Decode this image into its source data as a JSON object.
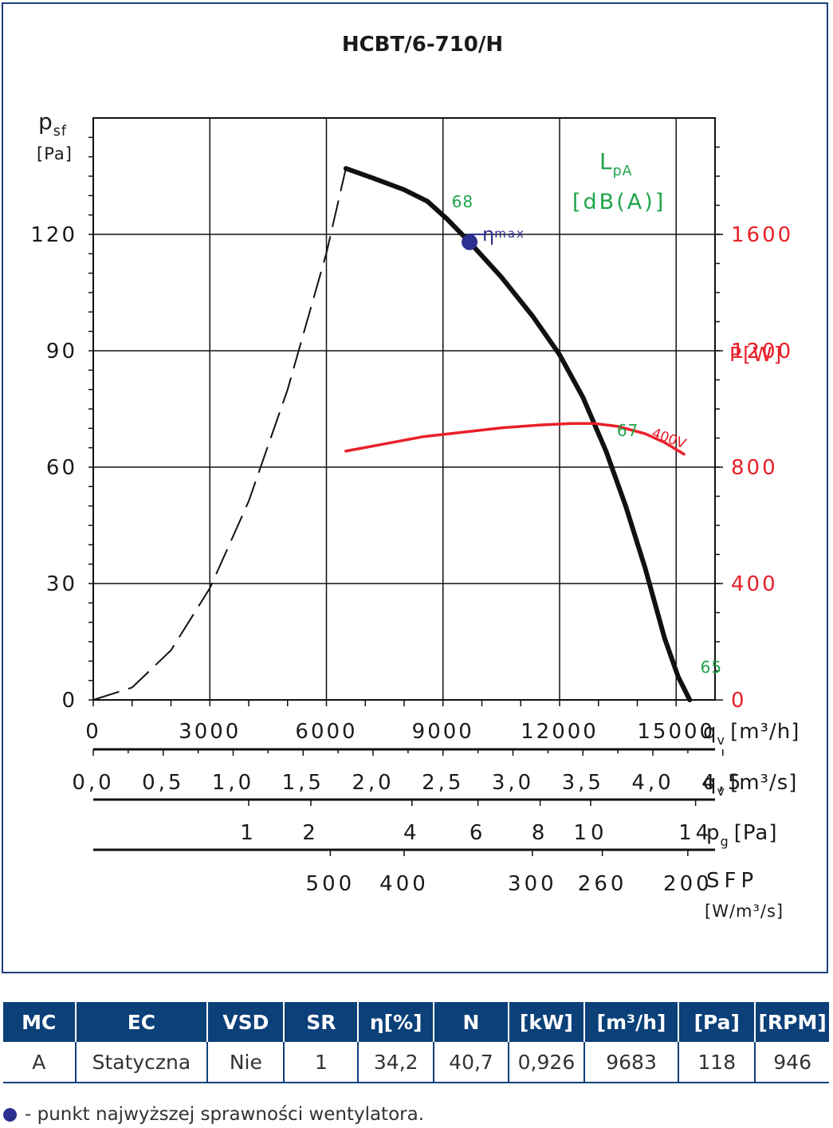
{
  "chart_data": {
    "type": "line",
    "title": "HCBT/6-710/H",
    "y_left": {
      "label_main": "p",
      "label_sub": "sf",
      "unit": "[Pa]",
      "range": [
        0,
        150
      ],
      "ticks": [
        "0",
        "30",
        "60",
        "90",
        "120"
      ]
    },
    "y_right": {
      "label": "P[W]",
      "range": [
        0,
        2000
      ],
      "ticks": [
        "0",
        "400",
        "800",
        "1200",
        "1600"
      ]
    },
    "x_axis": {
      "range": [
        0,
        16000
      ],
      "ticks": [
        "0",
        "3000",
        "6000",
        "9000",
        "12000",
        "15000"
      ],
      "label": "q",
      "label_sub": "v",
      "unit": "[m³/h]"
    },
    "x_axis_m3s": {
      "ticks": [
        "0,0",
        "0,5",
        "1,0",
        "1,5",
        "2,0",
        "2,5",
        "3,0",
        "3,5",
        "4,0",
        "4,5"
      ],
      "label": "q",
      "label_sub": "v",
      "unit": "[m³/s]"
    },
    "pg_axis": {
      "ticks": [
        "1",
        "2",
        "4",
        "6",
        "8",
        "10",
        "14"
      ],
      "positions_m3h": [
        4000,
        5600,
        8200,
        9900,
        11500,
        12800,
        15500
      ],
      "label": "p",
      "label_sub": "g",
      "unit": "[Pa]"
    },
    "sfp_axis": {
      "ticks": [
        "500",
        "400",
        "300",
        "260",
        "200"
      ],
      "positions_m3h": [
        6100,
        8000,
        11300,
        13100,
        15300
      ],
      "label": "SFP",
      "unit": "[W/m³/s]"
    },
    "lpa": {
      "label_main": "L",
      "label_sub": "pA",
      "unit": "[dB(A)]",
      "values": [
        "68",
        "67",
        "65"
      ]
    },
    "series": [
      {
        "role": "pressure",
        "color": "#111111",
        "x": [
          6500,
          7200,
          8000,
          8600,
          9100,
          9683,
          10500,
          11300,
          12000,
          12600,
          13200,
          13700,
          14200,
          14700,
          15050,
          15350
        ],
        "y": [
          137,
          134.5,
          131.5,
          128.5,
          124,
          118,
          109,
          99,
          89,
          78,
          64,
          50,
          34,
          16,
          6,
          0
        ]
      },
      {
        "role": "system_curve",
        "color": "#111111",
        "dashed": true,
        "x": [
          0,
          1000,
          2000,
          3000,
          4000,
          5000,
          6000,
          6500
        ],
        "y": [
          0,
          3.2,
          12.8,
          28.8,
          51.2,
          80,
          115.2,
          137
        ]
      },
      {
        "role": "power",
        "color": "#e8202a",
        "label": "400V",
        "x": [
          6500,
          7500,
          8500,
          9500,
          10500,
          11500,
          12300,
          12900,
          13500,
          14200,
          14700,
          15200
        ],
        "y": [
          855,
          880,
          905,
          920,
          935,
          945,
          950,
          950,
          940,
          915,
          885,
          845
        ]
      }
    ],
    "efficiency_point": {
      "label": "η",
      "label_sub": "max",
      "x": 9683,
      "y": 118
    },
    "grid": true
  },
  "table": {
    "headers": [
      "MC",
      "EC",
      "VSD",
      "SR",
      "η[%]",
      "N",
      "[kW]",
      "[m³/h]",
      "[Pa]",
      "[RPM]"
    ],
    "row": [
      "A",
      "Statyczna",
      "Nie",
      "1",
      "34,2",
      "40,7",
      "0,926",
      "9683",
      "118",
      "946"
    ]
  },
  "legend_note": "- punkt najwyższej sprawności wentylatora.",
  "colors": {
    "frame": "#1d3f7a",
    "table_header": "#0b4079",
    "power": "#e8202a",
    "lpa": "#1fa44a",
    "efficiency": "#2b2f8f"
  }
}
